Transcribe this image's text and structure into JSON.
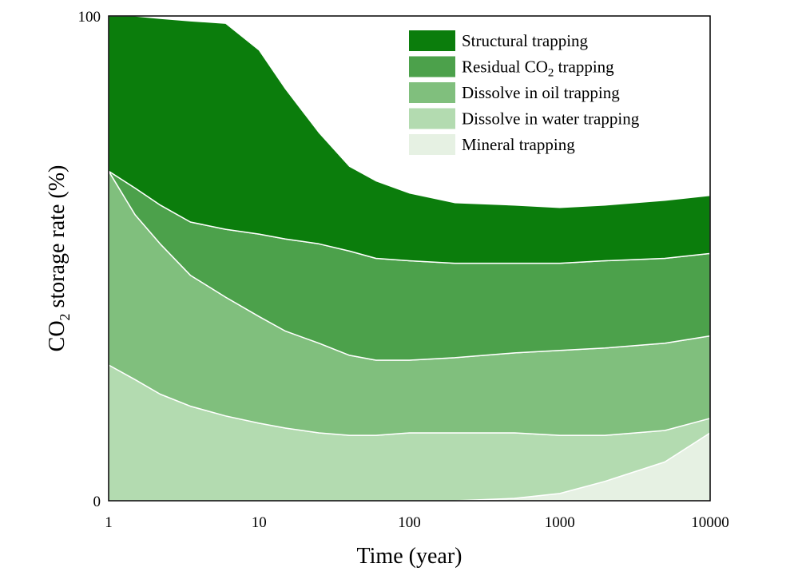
{
  "chart_data": {
    "type": "area",
    "stacked": true,
    "x_scale": "log",
    "title": "",
    "xlabel": "Time (year)",
    "ylabel_main": "CO",
    "ylabel_sub": "2",
    "ylabel_rest": " storage rate (%)",
    "xlim": [
      1,
      10000
    ],
    "ylim": [
      0,
      100
    ],
    "x_ticks": [
      {
        "value": 1,
        "label": "1"
      },
      {
        "value": 10,
        "label": "10"
      },
      {
        "value": 100,
        "label": "100"
      },
      {
        "value": 1000,
        "label": "1000"
      },
      {
        "value": 10000,
        "label": "10000"
      }
    ],
    "y_ticks": [
      {
        "value": 0,
        "label": "0"
      },
      {
        "value": 100,
        "label": "100"
      }
    ],
    "x": [
      1,
      1.5,
      2.2,
      3.5,
      6,
      10,
      15,
      25,
      40,
      60,
      100,
      200,
      500,
      1000,
      2000,
      5000,
      10000
    ],
    "series": [
      {
        "name": "Mineral trapping",
        "label_main": "Mineral trapping",
        "label_sub": "",
        "label_rest": "",
        "color": "#e6f1e3",
        "values": [
          0,
          0,
          0,
          0,
          0,
          0,
          0,
          0,
          0,
          0,
          0,
          0,
          0.5,
          1.5,
          4,
          8,
          14
        ]
      },
      {
        "name": "Dissolve in water trapping",
        "label_main": "Dissolve in water trapping",
        "label_sub": "",
        "label_rest": "",
        "color": "#b3dbb0",
        "values": [
          28,
          25,
          22,
          19.5,
          17.5,
          16,
          15,
          14,
          13.5,
          13.5,
          14,
          14,
          13.5,
          12,
          9.5,
          6.5,
          3
        ]
      },
      {
        "name": "Dissolve in oil trapping",
        "label_main": "Dissolve in oil trapping",
        "label_sub": "",
        "label_rest": "",
        "color": "#80bf7d",
        "values": [
          40,
          34,
          31,
          27,
          24.5,
          22,
          20,
          18.5,
          16.5,
          15.5,
          15,
          15.5,
          16.5,
          17.5,
          18,
          18,
          17
        ]
      },
      {
        "name": "Residual CO2 trapping",
        "label_main": "Residual CO",
        "label_sub": "2",
        "label_rest": " trapping",
        "color": "#4ca14b",
        "values": [
          0,
          5.5,
          8,
          11,
          14,
          17,
          19,
          20.5,
          21.5,
          21,
          20.5,
          19.5,
          18.5,
          18,
          18,
          17.5,
          17
        ]
      },
      {
        "name": "Structural trapping",
        "label_main": "Structural trapping",
        "label_sub": "",
        "label_rest": "",
        "color": "#0b7d0c",
        "values": [
          32,
          35.5,
          38.5,
          41.5,
          42.5,
          38,
          31,
          23,
          17.5,
          16,
          14,
          12.5,
          12,
          11.5,
          11.5,
          12,
          12
        ]
      }
    ],
    "legend_order": [
      "Structural trapping",
      "Residual CO2 trapping",
      "Dissolve in oil trapping",
      "Dissolve in water trapping",
      "Mineral trapping"
    ],
    "legend_position": "top-right",
    "grid": false
  }
}
